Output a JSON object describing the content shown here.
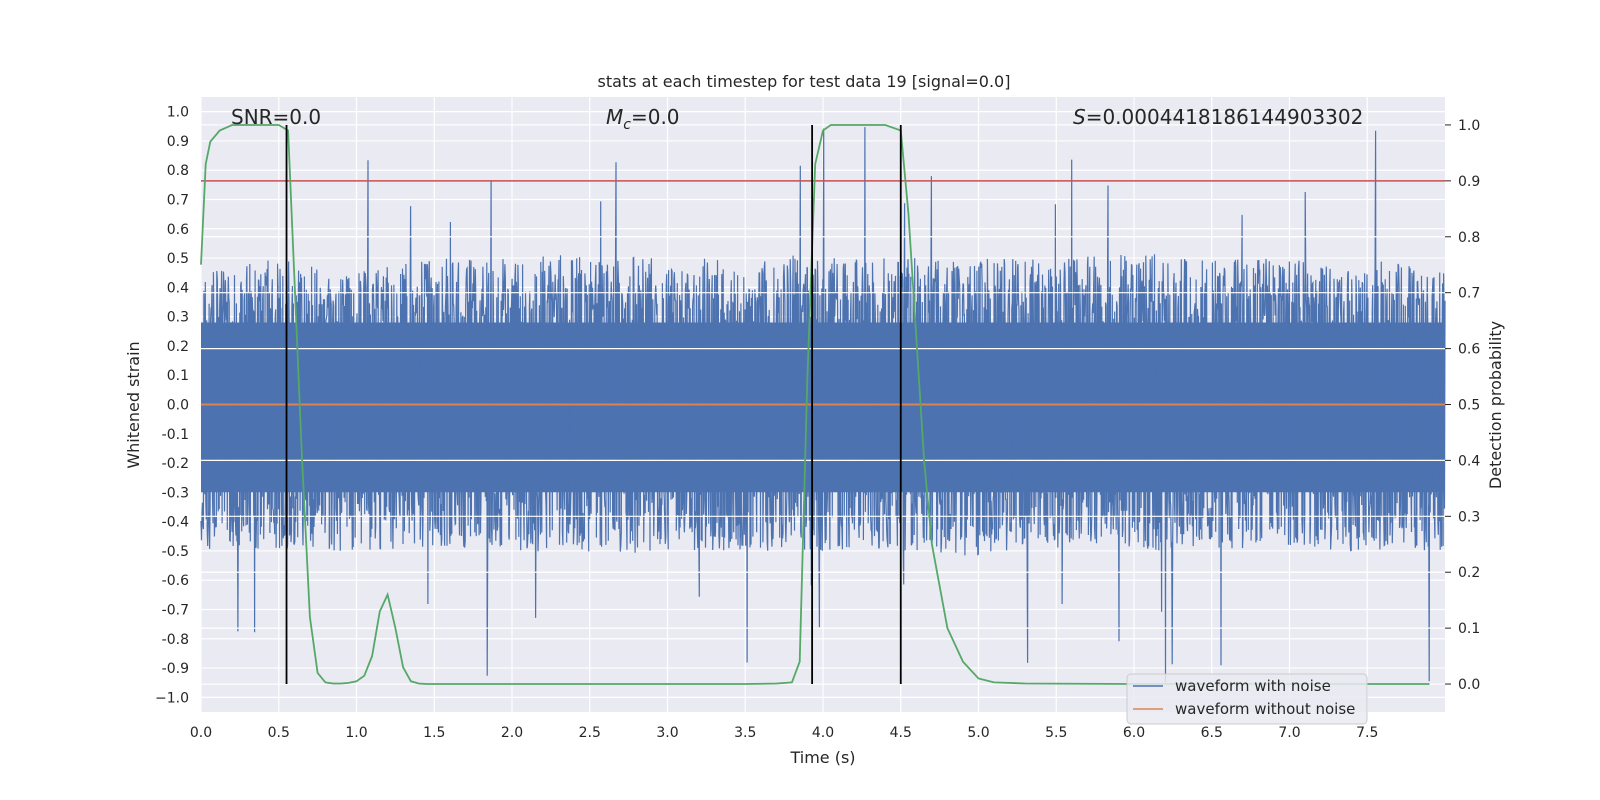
{
  "chart_data": {
    "type": "line",
    "title": "stats at each timestep for test data 19 [signal=0.0]",
    "xlabel": "Time (s)",
    "ylabel": "Whitened strain",
    "y2label": "Detection probability",
    "xlim": [
      0,
      8
    ],
    "ylim": [
      -1.05,
      1.05
    ],
    "y2lim": [
      -0.05,
      1.05
    ],
    "xticks": [
      "0.0",
      "0.5",
      "1.0",
      "1.5",
      "2.0",
      "2.5",
      "3.0",
      "3.5",
      "4.0",
      "4.5",
      "5.0",
      "5.5",
      "6.0",
      "6.5",
      "7.0",
      "7.5"
    ],
    "yticks": [
      "1.0",
      "0.9",
      "0.8",
      "0.7",
      "0.6",
      "0.5",
      "0.4",
      "0.3",
      "0.2",
      "0.1",
      "0.0",
      "-0.1",
      "-0.2",
      "-0.3",
      "-0.4",
      "-0.5",
      "-0.6",
      "-0.7",
      "-0.8",
      "-0.9",
      "−1.0"
    ],
    "y2ticks": [
      "1.0",
      "0.9",
      "0.8",
      "0.7",
      "0.6",
      "0.5",
      "0.4",
      "0.3",
      "0.2",
      "0.1",
      "0.0"
    ],
    "grid": true,
    "annotations": {
      "snr": "SNR=0.0",
      "mc": "=0.0",
      "mc_symbol": "M",
      "mc_sub": "c",
      "s": "=0.0004418186144903302",
      "s_symbol": "S"
    },
    "threshold_line": 0.9,
    "detection_markers": [
      0.55,
      3.93,
      4.5
    ],
    "legend": {
      "location": "lower-right",
      "entries": [
        "waveform with noise",
        "waveform without noise"
      ]
    },
    "noise_envelope": {
      "time": [
        0.0,
        0.5,
        1.0,
        1.5,
        2.0,
        2.5,
        3.0,
        3.5,
        4.0,
        4.5,
        5.0,
        5.5,
        6.0,
        6.5,
        7.0,
        7.5,
        8.0
      ],
      "upper": [
        0.45,
        0.5,
        0.45,
        0.5,
        0.5,
        0.52,
        0.5,
        0.5,
        0.52,
        0.5,
        0.5,
        0.5,
        0.52,
        0.5,
        0.5,
        0.5,
        0.45
      ],
      "lower": [
        -0.5,
        -0.5,
        -0.5,
        -0.5,
        -0.5,
        -0.52,
        -0.5,
        -0.5,
        -0.5,
        -0.5,
        -0.52,
        -0.5,
        -0.5,
        -0.5,
        -0.5,
        -0.5,
        -0.5
      ],
      "peak_max": 1.0,
      "peak_min": -0.95
    },
    "series": [
      {
        "name": "waveform with noise",
        "color": "#4c72b0",
        "axis": "left",
        "description_values": "random noise band roughly within ±0.5 with spikes up to about ±1.0"
      },
      {
        "name": "waveform without noise",
        "color": "#dd8452",
        "axis": "left",
        "x": [
          0.0,
          8.0
        ],
        "y": [
          0.0,
          0.0
        ]
      },
      {
        "name": "detection probability",
        "color": "#55a868",
        "axis": "right",
        "x": [
          0.0,
          0.03,
          0.06,
          0.12,
          0.2,
          0.3,
          0.4,
          0.5,
          0.56,
          0.6,
          0.65,
          0.7,
          0.75,
          0.8,
          0.85,
          0.9,
          0.95,
          1.0,
          1.05,
          1.1,
          1.15,
          1.2,
          1.25,
          1.3,
          1.35,
          1.4,
          1.45,
          1.6,
          2.0,
          2.5,
          3.0,
          3.5,
          3.7,
          3.8,
          3.85,
          3.9,
          3.95,
          4.0,
          4.05,
          4.1,
          4.2,
          4.4,
          4.5,
          4.55,
          4.6,
          4.65,
          4.7,
          4.8,
          4.9,
          5.0,
          5.1,
          5.3,
          6.0,
          7.0,
          7.9
        ],
        "y": [
          0.75,
          0.93,
          0.97,
          0.99,
          1.0,
          1.0,
          1.0,
          1.0,
          0.99,
          0.73,
          0.4,
          0.12,
          0.02,
          0.003,
          0.001,
          0.001,
          0.002,
          0.005,
          0.015,
          0.05,
          0.13,
          0.16,
          0.1,
          0.03,
          0.005,
          0.001,
          0.0,
          0.0,
          0.0,
          0.0,
          0.0,
          0.0,
          0.001,
          0.003,
          0.04,
          0.55,
          0.93,
          0.99,
          1.0,
          1.0,
          1.0,
          1.0,
          0.99,
          0.84,
          0.62,
          0.4,
          0.25,
          0.1,
          0.04,
          0.01,
          0.003,
          0.001,
          0.0,
          0.0,
          0.0
        ]
      }
    ]
  }
}
